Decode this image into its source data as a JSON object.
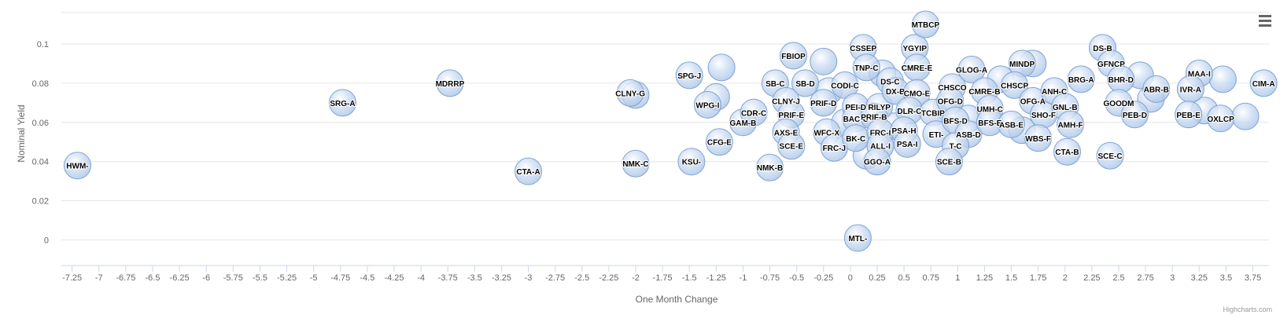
{
  "chart_data": {
    "type": "scatter",
    "subtype": "bubble",
    "xlabel": "One Month Change",
    "ylabel": "Nominal Yield",
    "xlim": [
      -7.35,
      3.9
    ],
    "ylim": [
      -0.013,
      0.116
    ],
    "x_ticks": [
      "-7.25",
      "-7",
      "-6.75",
      "-6.5",
      "-6.25",
      "-6",
      "-5.75",
      "-5.5",
      "-5.25",
      "-5",
      "-4.75",
      "-4.5",
      "-4.25",
      "-4",
      "-3.75",
      "-3.5",
      "-3.25",
      "-3",
      "-2.75",
      "-2.5",
      "-2.25",
      "-2",
      "-1.75",
      "-1.5",
      "-1.25",
      "-1",
      "-0.75",
      "-0.5",
      "-0.25",
      "0",
      "0.25",
      "0.5",
      "0.75",
      "1",
      "1.25",
      "1.5",
      "1.75",
      "2",
      "2.25",
      "2.5",
      "2.75",
      "3",
      "3.25",
      "3.5",
      "3.75"
    ],
    "y_ticks": [
      "0",
      "0.02",
      "0.04",
      "0.06",
      "0.08",
      "0.1"
    ],
    "grid": true,
    "legend": "none",
    "colors": {
      "bubble_fill": "#a9c4e8",
      "bubble_stroke": "#7fa4d4",
      "label": "#000000",
      "grid": "#e6e6e6",
      "axis_text": "#666666"
    },
    "points": [
      {
        "name": "HWM-",
        "x": -7.2,
        "y": 0.038
      },
      {
        "name": "SRG-A",
        "x": -4.73,
        "y": 0.07
      },
      {
        "name": "MDRRP",
        "x": -3.73,
        "y": 0.08
      },
      {
        "name": "CTA-A",
        "x": -3.0,
        "y": 0.035
      },
      {
        "name": "CLNY-G",
        "x": -2.05,
        "y": 0.075
      },
      {
        "name": "NMK-C",
        "x": -2.0,
        "y": 0.039
      },
      {
        "name": "SPG-J",
        "x": -1.5,
        "y": 0.084
      },
      {
        "name": "KSU-",
        "x": -1.48,
        "y": 0.04
      },
      {
        "name": "WPG-I",
        "x": -1.33,
        "y": 0.069
      },
      {
        "name": "CFG-E",
        "x": -1.22,
        "y": 0.05
      },
      {
        "name": "GAM-B",
        "x": -1.0,
        "y": 0.06
      },
      {
        "name": "CDR-C",
        "x": -0.9,
        "y": 0.065
      },
      {
        "name": "NMK-B",
        "x": -0.75,
        "y": 0.037
      },
      {
        "name": "FBIOP",
        "x": -0.53,
        "y": 0.094
      },
      {
        "name": "SB-C",
        "x": -0.7,
        "y": 0.08
      },
      {
        "name": "SB-D",
        "x": -0.42,
        "y": 0.08
      },
      {
        "name": "CLNY-J",
        "x": -0.6,
        "y": 0.071
      },
      {
        "name": "PRIF-E",
        "x": -0.55,
        "y": 0.064
      },
      {
        "name": "AXS-E",
        "x": -0.6,
        "y": 0.055
      },
      {
        "name": "SCE-E",
        "x": -0.55,
        "y": 0.048
      },
      {
        "name": "PRIF-D",
        "x": -0.25,
        "y": 0.07
      },
      {
        "name": "WFC-X",
        "x": -0.22,
        "y": 0.055
      },
      {
        "name": "FRC-J",
        "x": -0.15,
        "y": 0.047
      },
      {
        "name": "CODI-C",
        "x": -0.05,
        "y": 0.079
      },
      {
        "name": "CSSEP",
        "x": 0.12,
        "y": 0.098
      },
      {
        "name": "TNP-C",
        "x": 0.15,
        "y": 0.088
      },
      {
        "name": "DS-C",
        "x": 0.37,
        "y": 0.081
      },
      {
        "name": "PEI-D",
        "x": 0.05,
        "y": 0.068
      },
      {
        "name": "BAC-C",
        "x": 0.05,
        "y": 0.062
      },
      {
        "name": "BK-C",
        "x": 0.05,
        "y": 0.052
      },
      {
        "name": "RILYP",
        "x": 0.27,
        "y": 0.068
      },
      {
        "name": "PRIF-B",
        "x": 0.22,
        "y": 0.063
      },
      {
        "name": "DX-B",
        "x": 0.42,
        "y": 0.076
      },
      {
        "name": "FRC-I",
        "x": 0.28,
        "y": 0.055
      },
      {
        "name": "ALL-I",
        "x": 0.28,
        "y": 0.048
      },
      {
        "name": "GGO-A",
        "x": 0.25,
        "y": 0.04
      },
      {
        "name": "MTL-",
        "x": 0.07,
        "y": 0.001
      },
      {
        "name": "YGYIP",
        "x": 0.6,
        "y": 0.098
      },
      {
        "name": "CMRE-E",
        "x": 0.62,
        "y": 0.088
      },
      {
        "name": "MTBCP",
        "x": 0.7,
        "y": 0.11
      },
      {
        "name": "CMO-E",
        "x": 0.62,
        "y": 0.075
      },
      {
        "name": "DLR-C",
        "x": 0.55,
        "y": 0.066
      },
      {
        "name": "TCBIP",
        "x": 0.77,
        "y": 0.065
      },
      {
        "name": "PSA-H",
        "x": 0.5,
        "y": 0.056
      },
      {
        "name": "PSA-I",
        "x": 0.53,
        "y": 0.049
      },
      {
        "name": "ETI-",
        "x": 0.8,
        "y": 0.054
      },
      {
        "name": "CHSCO",
        "x": 0.95,
        "y": 0.078
      },
      {
        "name": "OFG-D",
        "x": 0.93,
        "y": 0.071
      },
      {
        "name": "BFS-D",
        "x": 0.98,
        "y": 0.061
      },
      {
        "name": "ASB-D",
        "x": 1.1,
        "y": 0.054
      },
      {
        "name": "T-C",
        "x": 0.98,
        "y": 0.048
      },
      {
        "name": "SCE-B",
        "x": 0.92,
        "y": 0.04
      },
      {
        "name": "GLOG-A",
        "x": 1.13,
        "y": 0.087
      },
      {
        "name": "CMRE-B",
        "x": 1.25,
        "y": 0.076
      },
      {
        "name": "UMH-C",
        "x": 1.3,
        "y": 0.067
      },
      {
        "name": "BFS-E",
        "x": 1.3,
        "y": 0.06
      },
      {
        "name": "ASB-E",
        "x": 1.5,
        "y": 0.059
      },
      {
        "name": "MINDP",
        "x": 1.6,
        "y": 0.09
      },
      {
        "name": "CHSCP",
        "x": 1.53,
        "y": 0.079
      },
      {
        "name": "OFG-A",
        "x": 1.7,
        "y": 0.071
      },
      {
        "name": "SHO-F",
        "x": 1.8,
        "y": 0.064
      },
      {
        "name": "WBS-F",
        "x": 1.75,
        "y": 0.052
      },
      {
        "name": "ANH-C",
        "x": 1.9,
        "y": 0.076
      },
      {
        "name": "GNL-B",
        "x": 2.0,
        "y": 0.068
      },
      {
        "name": "AMH-F",
        "x": 2.05,
        "y": 0.059
      },
      {
        "name": "CTA-B",
        "x": 2.02,
        "y": 0.045
      },
      {
        "name": "DS-B",
        "x": 2.35,
        "y": 0.098
      },
      {
        "name": "GFNCP",
        "x": 2.43,
        "y": 0.09
      },
      {
        "name": "BRG-A",
        "x": 2.15,
        "y": 0.082
      },
      {
        "name": "BHR-D",
        "x": 2.52,
        "y": 0.082
      },
      {
        "name": "GOODM",
        "x": 2.5,
        "y": 0.07
      },
      {
        "name": "PEB-D",
        "x": 2.65,
        "y": 0.064
      },
      {
        "name": "ABR-B",
        "x": 2.85,
        "y": 0.077
      },
      {
        "name": "SCE-C",
        "x": 2.42,
        "y": 0.043
      },
      {
        "name": "MAA-I",
        "x": 3.25,
        "y": 0.085
      },
      {
        "name": "IVR-A",
        "x": 3.17,
        "y": 0.077
      },
      {
        "name": "PEB-E",
        "x": 3.15,
        "y": 0.064
      },
      {
        "name": "OXLCP",
        "x": 3.45,
        "y": 0.062
      },
      {
        "name": "CIM-A",
        "x": 3.85,
        "y": 0.08
      },
      {
        "name": "",
        "x": -1.2,
        "y": 0.088
      },
      {
        "name": "",
        "x": -1.25,
        "y": 0.073
      },
      {
        "name": "",
        "x": -2.0,
        "y": 0.074
      },
      {
        "name": "",
        "x": -0.25,
        "y": 0.091
      },
      {
        "name": "",
        "x": -0.2,
        "y": 0.076
      },
      {
        "name": "",
        "x": 0.3,
        "y": 0.085
      },
      {
        "name": "",
        "x": 0.9,
        "y": 0.068
      },
      {
        "name": "",
        "x": 1.4,
        "y": 0.082
      },
      {
        "name": "",
        "x": 1.7,
        "y": 0.09
      },
      {
        "name": "",
        "x": 2.7,
        "y": 0.084
      },
      {
        "name": "",
        "x": 2.8,
        "y": 0.072
      },
      {
        "name": "",
        "x": 3.3,
        "y": 0.066
      },
      {
        "name": "",
        "x": 3.47,
        "y": 0.082
      },
      {
        "name": "",
        "x": 3.68,
        "y": 0.063
      },
      {
        "name": "",
        "x": -0.05,
        "y": 0.06
      },
      {
        "name": "",
        "x": 0.4,
        "y": 0.058
      },
      {
        "name": "",
        "x": 1.1,
        "y": 0.062
      },
      {
        "name": "",
        "x": 1.6,
        "y": 0.056
      },
      {
        "name": "",
        "x": 0.15,
        "y": 0.043
      }
    ]
  },
  "menu": {
    "icon": "hamburger-menu-icon"
  },
  "credits": {
    "text": "Highcharts.com"
  }
}
